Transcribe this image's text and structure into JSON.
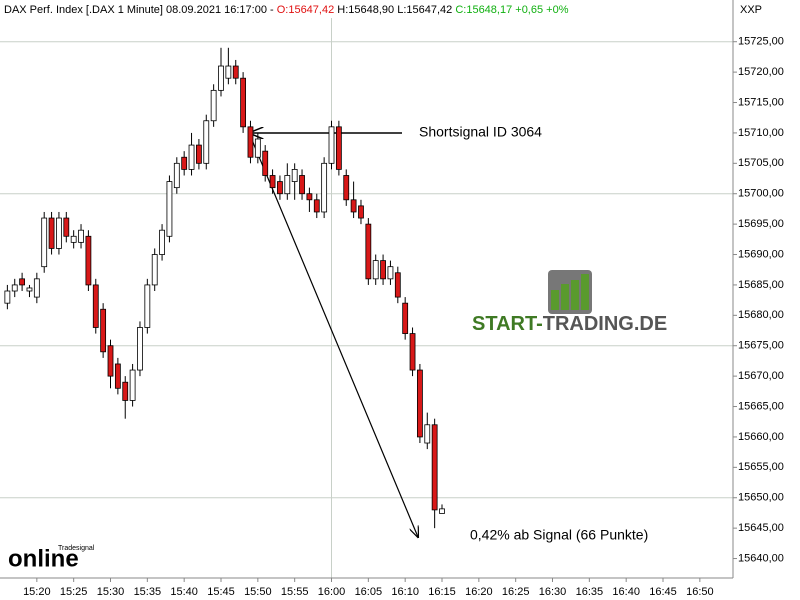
{
  "header": [
    "DAX Perf. Index [.DAX  1 Minute] 08.09.2021 16:17:00 - ",
    "O:15647,42",
    " H:15648,90 L:15647,42 ",
    "C:15648,17 +0,65 +0%"
  ],
  "axis_caption": "XXP",
  "logo": [
    "START-",
    "TRADING.DE"
  ],
  "watermark": [
    "Tradesignal",
    "online"
  ],
  "chart_data": {
    "type": "candlestick",
    "up_color": "#ffffff",
    "down_color": "#d81818",
    "annotations": [
      "Shortsignal ID 3064",
      "0,42% ab Signal (66 Punkte)"
    ],
    "x": [
      916,
      917,
      918,
      919,
      920,
      921,
      922,
      923,
      924,
      925,
      926,
      927,
      928,
      929,
      930,
      931,
      932,
      933,
      934,
      935,
      936,
      937,
      938,
      939,
      940,
      941,
      942,
      943,
      944,
      945,
      946,
      947,
      948,
      949,
      950,
      951,
      952,
      953,
      954,
      955,
      956,
      957,
      958,
      959,
      960,
      961,
      962,
      963,
      964,
      965,
      966,
      967,
      968,
      969,
      970,
      971,
      972,
      973,
      974,
      975
    ],
    "open": [
      15682,
      15684,
      15686,
      15684,
      15683,
      15688,
      15696,
      15691,
      15696,
      15692,
      15692,
      15693,
      15685,
      15681,
      15675,
      15672,
      15669,
      15666,
      15671,
      15678,
      15685,
      15690,
      15693,
      15701,
      15706,
      15704,
      15708,
      15705,
      15712,
      15717,
      15719,
      15721,
      15719,
      15711,
      15706,
      15707,
      15703,
      15702,
      15700,
      15702,
      15703,
      15700,
      15699,
      15697,
      15705,
      15711,
      15703,
      15699,
      15698,
      15695,
      15686,
      15689,
      15686,
      15687,
      15682,
      15677,
      15671,
      15659,
      15662,
      15647.42
    ],
    "high": [
      15685,
      15686,
      15687,
      15685,
      15687,
      15697,
      15697,
      15697,
      15697,
      15694,
      15695,
      15694,
      15686,
      15682,
      15676,
      15673,
      15670,
      15672,
      15679,
      15686,
      15691,
      15695,
      15703,
      15706,
      15707,
      15710,
      15709,
      15713,
      15718,
      15724,
      15724,
      15722,
      15720,
      15712,
      15710,
      15708,
      15704,
      15703,
      15705,
      15705,
      15704,
      15701,
      15700,
      15706,
      15712,
      15712,
      15704,
      15702,
      15699,
      15696,
      15690,
      15690,
      15689,
      15688,
      15683,
      15678,
      15672,
      15664,
      15663,
      15648.9
    ],
    "low": [
      15681,
      15683,
      15684,
      15683,
      15682,
      15687,
      15690,
      15690,
      15692,
      15691,
      15691,
      15684,
      15677,
      15673,
      15668,
      15667,
      15663,
      15665,
      15670,
      15677,
      15684,
      15689,
      15692,
      15700,
      15703,
      15703,
      15704,
      15704,
      15711,
      15716,
      15718,
      15718,
      15710,
      15705,
      15705,
      15702,
      15700,
      15699,
      15699,
      15699,
      15699,
      15697,
      15696,
      15696,
      15704,
      15703,
      15698,
      15696,
      15695,
      15685,
      15685,
      15685,
      15685,
      15682,
      15676,
      15670,
      15659,
      15658,
      15645,
      15647.42
    ],
    "close": [
      15684,
      15685,
      15685,
      15684.5,
      15686,
      15696,
      15691,
      15696,
      15693,
      15693,
      15694,
      15685,
      15678,
      15674,
      15670,
      15668,
      15666,
      15671,
      15678,
      15685,
      15690,
      15694,
      15702,
      15705,
      15704,
      15708,
      15705,
      15712,
      15717,
      15721,
      15721,
      15719,
      15711,
      15706,
      15709,
      15703,
      15701,
      15700,
      15703,
      15704,
      15700,
      15699,
      15697,
      15705,
      15711,
      15704,
      15699,
      15697,
      15696,
      15686,
      15689,
      15686,
      15688,
      15683,
      15677,
      15671,
      15660,
      15662,
      15648,
      15648.17
    ],
    "xlim": [
      915,
      1014.5
    ],
    "ylim": [
      15636.8,
      15728.9
    ],
    "xticks": [
      {
        "value": 920,
        "label": "15:20"
      },
      {
        "value": 925,
        "label": "15:25"
      },
      {
        "value": 930,
        "label": "15:30"
      },
      {
        "value": 935,
        "label": "15:35"
      },
      {
        "value": 940,
        "label": "15:40"
      },
      {
        "value": 945,
        "label": "15:45"
      },
      {
        "value": 950,
        "label": "15:50"
      },
      {
        "value": 955,
        "label": "15:55"
      },
      {
        "value": 960,
        "label": "16:00"
      },
      {
        "value": 965,
        "label": "16:05"
      },
      {
        "value": 970,
        "label": "16:10"
      },
      {
        "value": 975,
        "label": "16:15"
      },
      {
        "value": 980,
        "label": "16:20"
      },
      {
        "value": 985,
        "label": "16:25"
      },
      {
        "value": 990,
        "label": "16:30"
      },
      {
        "value": 995,
        "label": "16:35"
      },
      {
        "value": 1000,
        "label": "16:40"
      },
      {
        "value": 1005,
        "label": "16:45"
      },
      {
        "value": 1010,
        "label": "16:50"
      }
    ],
    "yticks": [
      {
        "value": 15640,
        "label": "15640,00"
      },
      {
        "value": 15645,
        "label": "15645,00"
      },
      {
        "value": 15650,
        "label": "15650,00"
      },
      {
        "value": 15655,
        "label": "15655,00"
      },
      {
        "value": 15660,
        "label": "15660,00"
      },
      {
        "value": 15665,
        "label": "15665,00"
      },
      {
        "value": 15670,
        "label": "15670,00"
      },
      {
        "value": 15675,
        "label": "15675,00"
      },
      {
        "value": 15680,
        "label": "15680,00"
      },
      {
        "value": 15685,
        "label": "15685,00"
      },
      {
        "value": 15690,
        "label": "15690,00"
      },
      {
        "value": 15695,
        "label": "15695,00"
      },
      {
        "value": 15700,
        "label": "15700,00"
      },
      {
        "value": 15705,
        "label": "15705,00"
      },
      {
        "value": 15710,
        "label": "15710,00"
      },
      {
        "value": 15715,
        "label": "15715,00"
      },
      {
        "value": 15720,
        "label": "15720,00"
      },
      {
        "value": 15725,
        "label": "15725,00"
      }
    ]
  }
}
